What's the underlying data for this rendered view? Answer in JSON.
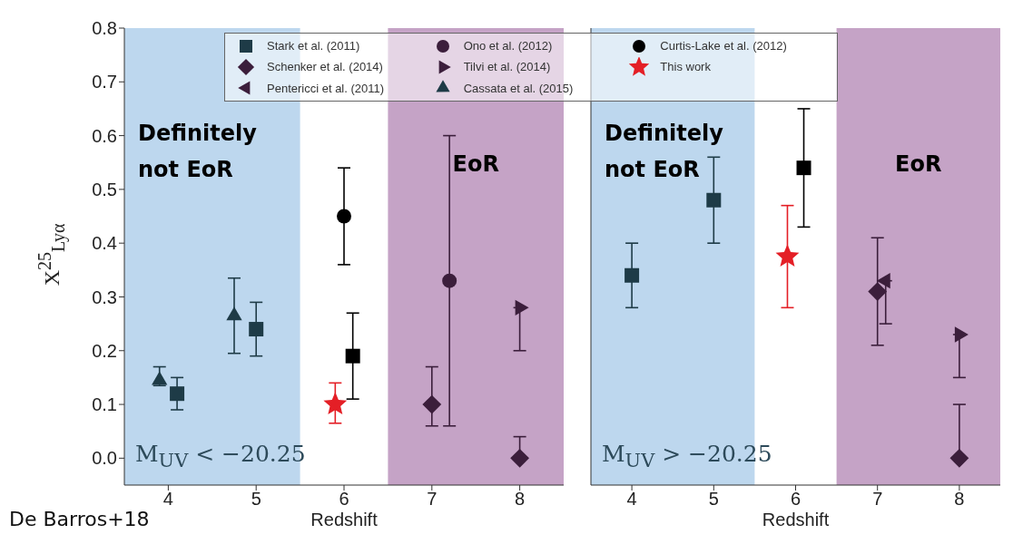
{
  "chart_data": [
    {
      "type": "scatter",
      "ylabel": "X$^{25}$$_{Lyα}$",
      "xlabel": "Redshift",
      "xlim": [
        3.5,
        8.5
      ],
      "xticks": [
        4,
        5,
        6,
        7,
        8
      ],
      "ylim": [
        -0.05,
        0.8
      ],
      "yticks": [
        {
          "value": 0,
          "label": "0.0"
        },
        0.1,
        0.2,
        0.3,
        0.4,
        0.5,
        0.6,
        0.7,
        0.8
      ],
      "legend": "top",
      "annotations": [
        "M$_{UV}$ < −20.25",
        "De Barros+18"
      ],
      "bands": [
        {
          "axis": "x",
          "from": 3.5,
          "to": 5.5,
          "label": "Definitely not EoR",
          "color": "#bdd7ee"
        },
        {
          "axis": "x",
          "from": 6.5,
          "to": 8.5,
          "label": "EoR",
          "color": "#c5a3c6"
        }
      ],
      "series": [
        {
          "name": "Stark et al. (2011)",
          "marker": "square",
          "x": [
            4.1,
            5.0,
            6.1
          ],
          "values": [
            0.12,
            0.24,
            0.19
          ],
          "errors": [
            0.03,
            0.05,
            0.08
          ],
          "colors": [
            "#1e3b47",
            "#1e3b47",
            "#000000"
          ]
        },
        {
          "name": "Schenker et al. (2014)",
          "marker": "diamond",
          "x": [
            7,
            8
          ],
          "values": [
            0.1,
            0.0
          ],
          "errors": [
            [
              0.06,
              0.17
            ],
            [
              0,
              0.04
            ]
          ],
          "colors": [
            "#3b1e3b",
            "#3b1e3b"
          ]
        },
        {
          "name": "Pentericci et al. (2011)",
          "marker": "triangle-left",
          "color": "#3b1e3b"
        },
        {
          "name": "Ono et al. (2012)",
          "marker": "circle",
          "x": [
            7.2
          ],
          "values": [
            0.33
          ],
          "errors": [
            0.27
          ],
          "colors": [
            "#3b1e3b"
          ]
        },
        {
          "name": "Tilvi et al. (2014)",
          "marker": "triangle-right",
          "x": [
            8
          ],
          "values": [
            0.28
          ],
          "errors": [
            [
              0.2,
              0.28
            ]
          ],
          "colors": [
            "#3b1e3b"
          ]
        },
        {
          "name": "Cassata et al. (2015)",
          "marker": "triangle",
          "x": [
            3.9,
            4.75
          ],
          "values": [
            0.145,
            0.265
          ],
          "errors": [
            [
              0.135,
              0.17
            ],
            0.07
          ],
          "colors": [
            "#1e3b47",
            "#1e3b47"
          ]
        },
        {
          "name": "Curtis-Lake et al. (2012)",
          "marker": "circle",
          "x": [
            6
          ],
          "values": [
            0.45
          ],
          "errors": [
            0.09
          ],
          "colors": [
            "#000000"
          ]
        },
        {
          "name": "This work",
          "marker": "star",
          "x": [
            5.9
          ],
          "values": [
            0.1
          ],
          "errors": [
            [
              0.065,
              0.14
            ]
          ],
          "colors": [
            "#e41f26"
          ]
        }
      ]
    },
    {
      "type": "scatter",
      "xlabel": "Redshift",
      "xlim": [
        3.5,
        8.5
      ],
      "xticks": [
        4,
        5,
        6,
        7,
        8
      ],
      "ylim": [
        -0.05,
        0.8
      ],
      "yticks": [
        0,
        0.1,
        0.2,
        0.3,
        0.4,
        0.5,
        0.6,
        0.7,
        0.8
      ],
      "tick_labels": "x",
      "annotations": [
        "M$_{UV}$ > −20.25"
      ],
      "bands": [
        {
          "axis": "x",
          "from": 3.5,
          "to": 5.5,
          "label": "Definitely not EoR",
          "color": "#bdd7ee"
        },
        {
          "axis": "x",
          "from": 6.5,
          "to": 8.5,
          "label": "EoR",
          "color": "#c5a3c6"
        }
      ],
      "series": [
        {
          "marker": "square",
          "x": [
            4,
            5,
            6.1
          ],
          "values": [
            0.34,
            0.48,
            0.54
          ],
          "errors": [
            0.06,
            0.08,
            0.11
          ],
          "colors": [
            "#1e3b47",
            "#1e3b47",
            "#000000"
          ]
        },
        {
          "marker": "diamond",
          "x": [
            7,
            8
          ],
          "values": [
            0.31,
            0.0
          ],
          "errors": [
            0.1,
            [
              0,
              0.1
            ]
          ],
          "colors": [
            "#3b1e3b",
            "#3b1e3b"
          ]
        },
        {
          "marker": "triangle-left",
          "x": [
            7.1
          ],
          "values": [
            0.33
          ],
          "errors": [
            [
              0.25,
              0.33
            ]
          ],
          "colors": [
            "#3b1e3b"
          ]
        },
        {
          "marker": "triangle-right",
          "x": [
            8
          ],
          "values": [
            0.23
          ],
          "errors": [
            [
              0.15,
              0.23
            ]
          ],
          "colors": [
            "#3b1e3b"
          ]
        },
        {
          "marker": "star",
          "x": [
            5.9
          ],
          "values": [
            0.375
          ],
          "errors": [
            [
              0.28,
              0.47
            ]
          ],
          "colors": [
            "#e41f26"
          ]
        }
      ]
    }
  ]
}
